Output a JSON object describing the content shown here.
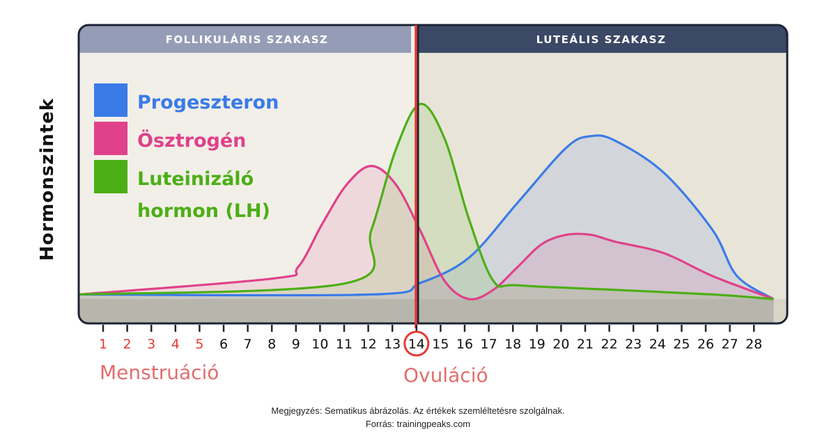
{
  "chart_data": {
    "type": "area",
    "phases": [
      {
        "label": "FOLLIKULÁRIS SZAKASZ",
        "header_color": "#959db6",
        "bg_color": "#f2efe8"
      },
      {
        "label": "LUTEÁLIS SZAKASZ",
        "header_color": "#3b4866",
        "bg_color": "#e9e4d8"
      }
    ],
    "ylabel": "Hormonszintek",
    "x_ticks": [
      "1",
      "2",
      "3",
      "4",
      "5",
      "6",
      "7",
      "8",
      "9",
      "10",
      "11",
      "12",
      "13",
      "14",
      "15",
      "16",
      "17",
      "18",
      "19",
      "20",
      "21",
      "22",
      "23",
      "24",
      "25",
      "26",
      "27",
      "28"
    ],
    "menstruation_days": [
      1,
      2,
      3,
      4,
      5
    ],
    "menstruation_label": "Menstruáció",
    "ovulation_day": 14,
    "ovulation_label": "Ovuláció",
    "series": [
      {
        "name": "Progeszteron",
        "color": "#3a7be8",
        "points": [
          [
            0,
            0.02
          ],
          [
            12,
            0.02
          ],
          [
            14,
            0.07
          ],
          [
            16,
            0.18
          ],
          [
            18,
            0.42
          ],
          [
            20,
            0.66
          ],
          [
            21,
            0.71
          ],
          [
            22,
            0.69
          ],
          [
            24,
            0.55
          ],
          [
            26,
            0.3
          ],
          [
            27,
            0.1
          ],
          [
            28.5,
            0.0
          ]
        ]
      },
      {
        "name": "Ösztrogén",
        "color": "#e0418a",
        "points": [
          [
            0,
            0.02
          ],
          [
            8,
            0.09
          ],
          [
            9,
            0.14
          ],
          [
            10,
            0.33
          ],
          [
            11,
            0.5
          ],
          [
            12,
            0.58
          ],
          [
            13,
            0.5
          ],
          [
            14,
            0.3
          ],
          [
            15,
            0.08
          ],
          [
            16,
            0.0
          ],
          [
            17,
            0.04
          ],
          [
            18,
            0.14
          ],
          [
            19,
            0.24
          ],
          [
            20,
            0.28
          ],
          [
            21,
            0.28
          ],
          [
            22,
            0.25
          ],
          [
            24,
            0.2
          ],
          [
            26,
            0.1
          ],
          [
            28.5,
            0.0
          ]
        ]
      },
      {
        "name": "Luteinizáló hormon (LH)",
        "color": "#4caf15",
        "points": [
          [
            0,
            0.02
          ],
          [
            11,
            0.07
          ],
          [
            12,
            0.3
          ],
          [
            13,
            0.65
          ],
          [
            14,
            0.85
          ],
          [
            15,
            0.7
          ],
          [
            16,
            0.35
          ],
          [
            17,
            0.08
          ],
          [
            18,
            0.06
          ],
          [
            22,
            0.04
          ],
          [
            26,
            0.02
          ],
          [
            28.5,
            0.0
          ]
        ]
      }
    ]
  },
  "footnote": {
    "note": "Megjegyzés: Sematikus ábrázolás. Az értékek szemléltetésre szolgálnak.",
    "source": "Forrás: trainingpeaks.com"
  }
}
